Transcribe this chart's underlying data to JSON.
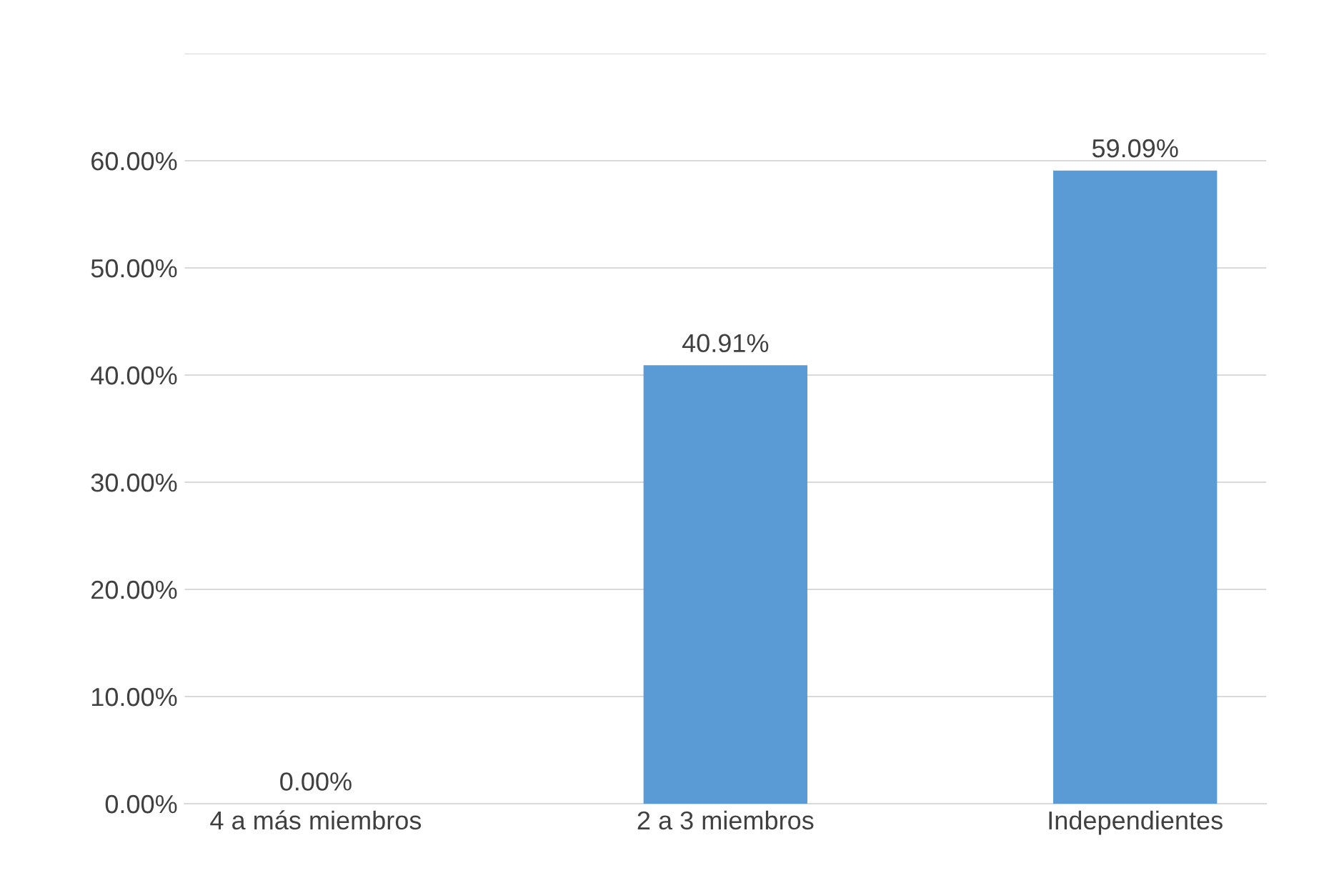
{
  "chart_data": {
    "type": "bar",
    "categories": [
      "4 a más miembros",
      "2 a 3 miembros",
      "Independientes"
    ],
    "values": [
      0,
      40.91,
      59.09
    ],
    "value_labels": [
      "0.00%",
      "40.91%",
      "59.09%"
    ],
    "color": "#5b9bd5",
    "ylim": [
      0,
      70
    ],
    "yticks": [
      {
        "value": 0,
        "label": "0.00%"
      },
      {
        "value": 10,
        "label": "10.00%"
      },
      {
        "value": 20,
        "label": "20.00%"
      },
      {
        "value": 30,
        "label": "30.00%"
      },
      {
        "value": 40,
        "label": "40.00%"
      },
      {
        "value": 50,
        "label": "50.00%"
      },
      {
        "value": 60,
        "label": "60.00%"
      },
      {
        "value": 70,
        "label": null
      }
    ],
    "grid": "y"
  }
}
